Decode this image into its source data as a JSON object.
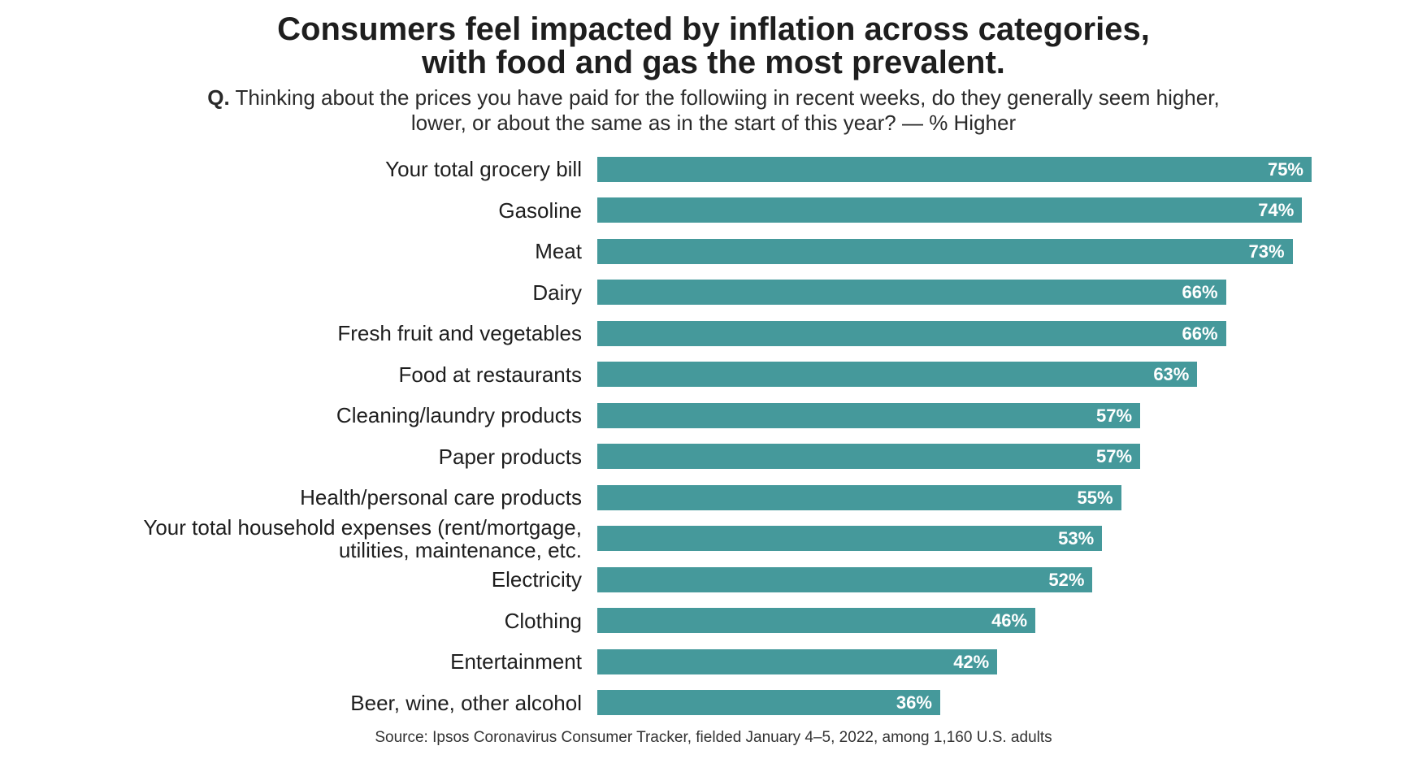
{
  "header": {
    "title_line1": "Consumers feel impacted by inflation across categories,",
    "title_line2": "with food and gas the most prevalent.",
    "question_prefix": "Q.",
    "question_line1": "Thinking about the prices you have paid for the followiing in recent weeks, do they generally seem higher,",
    "question_line2": "lower, or about the same as in the start of this year? — % Higher"
  },
  "footer": {
    "source": "Source: Ipsos Coronavirus Consumer Tracker, fielded January 4–5, 2022, among 1,160 U.S. adults"
  },
  "colors": {
    "bar": "#45999b",
    "bar_label": "#ffffff",
    "text": "#1e1e1e"
  },
  "chart_data": {
    "type": "bar",
    "orientation": "horizontal",
    "title": "Consumers feel impacted by inflation across categories, with food and gas the most prevalent.",
    "xlabel": "% Higher",
    "ylabel": "",
    "xlim": [
      0,
      100
    ],
    "grid": false,
    "categories": [
      [
        "Your total grocery bill"
      ],
      [
        "Gasoline"
      ],
      [
        "Meat"
      ],
      [
        "Dairy"
      ],
      [
        "Fresh fruit and vegetables"
      ],
      [
        "Food at restaurants"
      ],
      [
        "Cleaning/laundry products"
      ],
      [
        "Paper products"
      ],
      [
        "Health/personal care products"
      ],
      [
        "Your total household expenses (rent/mortgage,",
        "utilities, maintenance, etc."
      ],
      [
        "Electricity"
      ],
      [
        "Clothing"
      ],
      [
        "Entertainment"
      ],
      [
        "Beer, wine, other alcohol"
      ]
    ],
    "values": [
      75,
      74,
      73,
      66,
      66,
      63,
      57,
      57,
      55,
      53,
      52,
      46,
      42,
      36
    ],
    "value_labels": [
      "75%",
      "74%",
      "73%",
      "66%",
      "66%",
      "63%",
      "57%",
      "57%",
      "55%",
      "53%",
      "52%",
      "46%",
      "42%",
      "36%"
    ]
  }
}
